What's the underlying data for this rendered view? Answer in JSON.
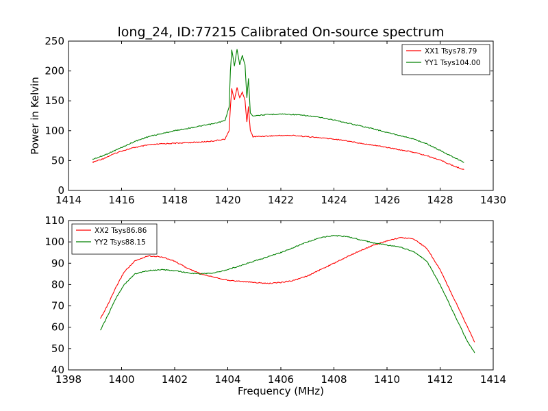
{
  "figure": {
    "title": "long_24, ID:77215 Calibrated On-source spectrum"
  },
  "chart_data": [
    {
      "type": "line",
      "title": "long_24, ID:77215 Calibrated On-source spectrum",
      "xlabel": "",
      "ylabel": "Power in Kelvin",
      "xlim": [
        1414,
        1430
      ],
      "ylim": [
        0,
        250
      ],
      "xticks": [
        1414,
        1416,
        1418,
        1420,
        1422,
        1424,
        1426,
        1428,
        1430
      ],
      "yticks": [
        0,
        50,
        100,
        150,
        200,
        250
      ],
      "grid": false,
      "legend_position": "top-right",
      "series": [
        {
          "name": "XX1 Tsys78.79",
          "color": "#ff0000",
          "points": [
            [
              1414.9,
              47
            ],
            [
              1415.3,
              53
            ],
            [
              1415.7,
              61
            ],
            [
              1416.0,
              66
            ],
            [
              1416.5,
              72
            ],
            [
              1417.0,
              76
            ],
            [
              1417.5,
              78
            ],
            [
              1418.0,
              79
            ],
            [
              1418.5,
              80
            ],
            [
              1419.0,
              81
            ],
            [
              1419.5,
              83
            ],
            [
              1419.9,
              86
            ],
            [
              1420.05,
              100
            ],
            [
              1420.1,
              140
            ],
            [
              1420.15,
              170
            ],
            [
              1420.25,
              152
            ],
            [
              1420.35,
              172
            ],
            [
              1420.45,
              155
            ],
            [
              1420.55,
              165
            ],
            [
              1420.65,
              150
            ],
            [
              1420.72,
              115
            ],
            [
              1420.78,
              140
            ],
            [
              1420.85,
              100
            ],
            [
              1420.95,
              90
            ],
            [
              1421.5,
              91
            ],
            [
              1422.0,
              92
            ],
            [
              1422.5,
              92
            ],
            [
              1423.0,
              90
            ],
            [
              1423.5,
              88
            ],
            [
              1424.0,
              86
            ],
            [
              1424.5,
              83
            ],
            [
              1425.0,
              79
            ],
            [
              1425.5,
              76
            ],
            [
              1426.0,
              72
            ],
            [
              1426.5,
              68
            ],
            [
              1427.0,
              64
            ],
            [
              1427.5,
              58
            ],
            [
              1428.0,
              51
            ],
            [
              1428.5,
              41
            ],
            [
              1428.9,
              35
            ]
          ]
        },
        {
          "name": "YY1 Tsys104.00",
          "color": "#008000",
          "points": [
            [
              1414.9,
              52
            ],
            [
              1415.3,
              58
            ],
            [
              1415.7,
              66
            ],
            [
              1416.0,
              72
            ],
            [
              1416.5,
              82
            ],
            [
              1417.0,
              90
            ],
            [
              1417.5,
              95
            ],
            [
              1418.0,
              100
            ],
            [
              1418.5,
              104
            ],
            [
              1419.0,
              108
            ],
            [
              1419.5,
              112
            ],
            [
              1419.9,
              117
            ],
            [
              1420.05,
              140
            ],
            [
              1420.1,
              200
            ],
            [
              1420.15,
              236
            ],
            [
              1420.25,
              208
            ],
            [
              1420.35,
              237
            ],
            [
              1420.45,
              210
            ],
            [
              1420.55,
              226
            ],
            [
              1420.65,
              210
            ],
            [
              1420.72,
              155
            ],
            [
              1420.78,
              188
            ],
            [
              1420.85,
              130
            ],
            [
              1420.95,
              125
            ],
            [
              1421.5,
              127
            ],
            [
              1422.0,
              128
            ],
            [
              1422.5,
              127
            ],
            [
              1423.0,
              125
            ],
            [
              1423.5,
              122
            ],
            [
              1424.0,
              118
            ],
            [
              1424.5,
              113
            ],
            [
              1425.0,
              108
            ],
            [
              1425.5,
              103
            ],
            [
              1426.0,
              97
            ],
            [
              1426.5,
              92
            ],
            [
              1427.0,
              86
            ],
            [
              1427.5,
              78
            ],
            [
              1428.0,
              67
            ],
            [
              1428.5,
              56
            ],
            [
              1428.9,
              47
            ]
          ]
        }
      ]
    },
    {
      "type": "line",
      "title": "",
      "xlabel": "Frequency (MHz)",
      "ylabel": "",
      "xlim": [
        1398,
        1414
      ],
      "ylim": [
        40,
        110
      ],
      "xticks": [
        1398,
        1400,
        1402,
        1404,
        1406,
        1408,
        1410,
        1412,
        1414
      ],
      "yticks": [
        40,
        50,
        60,
        70,
        80,
        90,
        100,
        110
      ],
      "grid": false,
      "legend_position": "top-left",
      "series": [
        {
          "name": "XX2 Tsys86.86",
          "color": "#ff0000",
          "points": [
            [
              1399.2,
              64
            ],
            [
              1399.5,
              71
            ],
            [
              1399.8,
              79
            ],
            [
              1400.1,
              86
            ],
            [
              1400.5,
              91
            ],
            [
              1401.0,
              93.5
            ],
            [
              1401.5,
              93
            ],
            [
              1402.0,
              91
            ],
            [
              1402.5,
              87.5
            ],
            [
              1403.0,
              85
            ],
            [
              1403.5,
              83.5
            ],
            [
              1404.0,
              82
            ],
            [
              1404.5,
              81.5
            ],
            [
              1405.0,
              81
            ],
            [
              1405.5,
              80.5
            ],
            [
              1406.0,
              81
            ],
            [
              1406.5,
              82
            ],
            [
              1407.0,
              84
            ],
            [
              1407.5,
              87
            ],
            [
              1408.0,
              90
            ],
            [
              1408.5,
              93
            ],
            [
              1409.0,
              96
            ],
            [
              1409.5,
              98.5
            ],
            [
              1410.0,
              100.5
            ],
            [
              1410.5,
              102
            ],
            [
              1411.0,
              101.5
            ],
            [
              1411.5,
              97
            ],
            [
              1412.0,
              87
            ],
            [
              1412.5,
              74
            ],
            [
              1413.0,
              61
            ],
            [
              1413.3,
              53
            ]
          ]
        },
        {
          "name": "YY2 Tsys88.15",
          "color": "#008000",
          "points": [
            [
              1399.2,
              58.5
            ],
            [
              1399.5,
              66
            ],
            [
              1399.8,
              74
            ],
            [
              1400.1,
              80
            ],
            [
              1400.5,
              85
            ],
            [
              1401.0,
              86.5
            ],
            [
              1401.5,
              87
            ],
            [
              1402.0,
              86.5
            ],
            [
              1402.5,
              85.5
            ],
            [
              1403.0,
              85
            ],
            [
              1403.5,
              85.5
            ],
            [
              1404.0,
              87
            ],
            [
              1404.5,
              89
            ],
            [
              1405.0,
              91
            ],
            [
              1405.5,
              93
            ],
            [
              1406.0,
              95
            ],
            [
              1406.5,
              97.5
            ],
            [
              1407.0,
              100
            ],
            [
              1407.5,
              102
            ],
            [
              1408.0,
              103
            ],
            [
              1408.5,
              102.5
            ],
            [
              1409.0,
              101
            ],
            [
              1409.5,
              99.5
            ],
            [
              1410.0,
              98.5
            ],
            [
              1410.5,
              97.5
            ],
            [
              1411.0,
              95.5
            ],
            [
              1411.5,
              91
            ],
            [
              1412.0,
              80
            ],
            [
              1412.5,
              67
            ],
            [
              1413.0,
              54
            ],
            [
              1413.3,
              48
            ]
          ]
        }
      ]
    }
  ]
}
